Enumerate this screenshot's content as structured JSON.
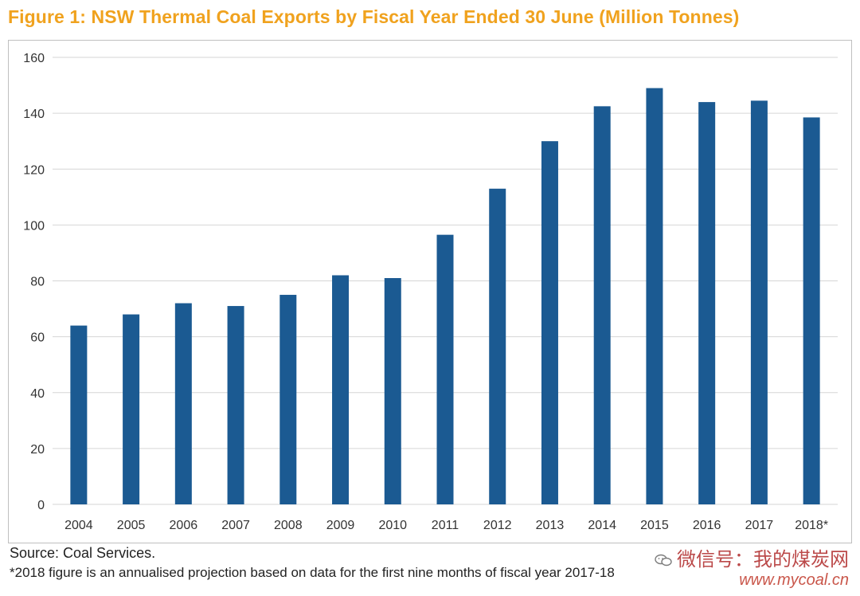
{
  "chart_data": {
    "type": "bar",
    "title": "Figure 1: NSW Thermal Coal Exports by Fiscal Year Ended 30 June (Million Tonnes)",
    "xlabel": "",
    "ylabel": "",
    "categories": [
      "2004",
      "2005",
      "2006",
      "2007",
      "2008",
      "2009",
      "2010",
      "2011",
      "2012",
      "2013",
      "2014",
      "2015",
      "2016",
      "2017",
      "2018*"
    ],
    "values": [
      64,
      68,
      72,
      71,
      75,
      82,
      81,
      96.5,
      113,
      130,
      142.5,
      149,
      144,
      144.5,
      138.5
    ],
    "ylim": [
      0,
      160
    ],
    "yticks": [
      "0",
      "20",
      "40",
      "60",
      "80",
      "100",
      "120",
      "140",
      "160"
    ],
    "grid": true,
    "bar_color": "#1B5A92",
    "grid_color": "#d6d6d6"
  },
  "notes": {
    "source": "Source: Coal Services.",
    "footnote": "*2018 figure is an annualised projection based on data for the first nine months of fiscal year 2017-18"
  },
  "watermark": {
    "line1": "微信号：我的煤炭网",
    "line2": "www.mycoal.cn",
    "icon": "wechat-icon",
    "color": "#b02a2a"
  },
  "colors": {
    "title": "#F0A21E"
  }
}
